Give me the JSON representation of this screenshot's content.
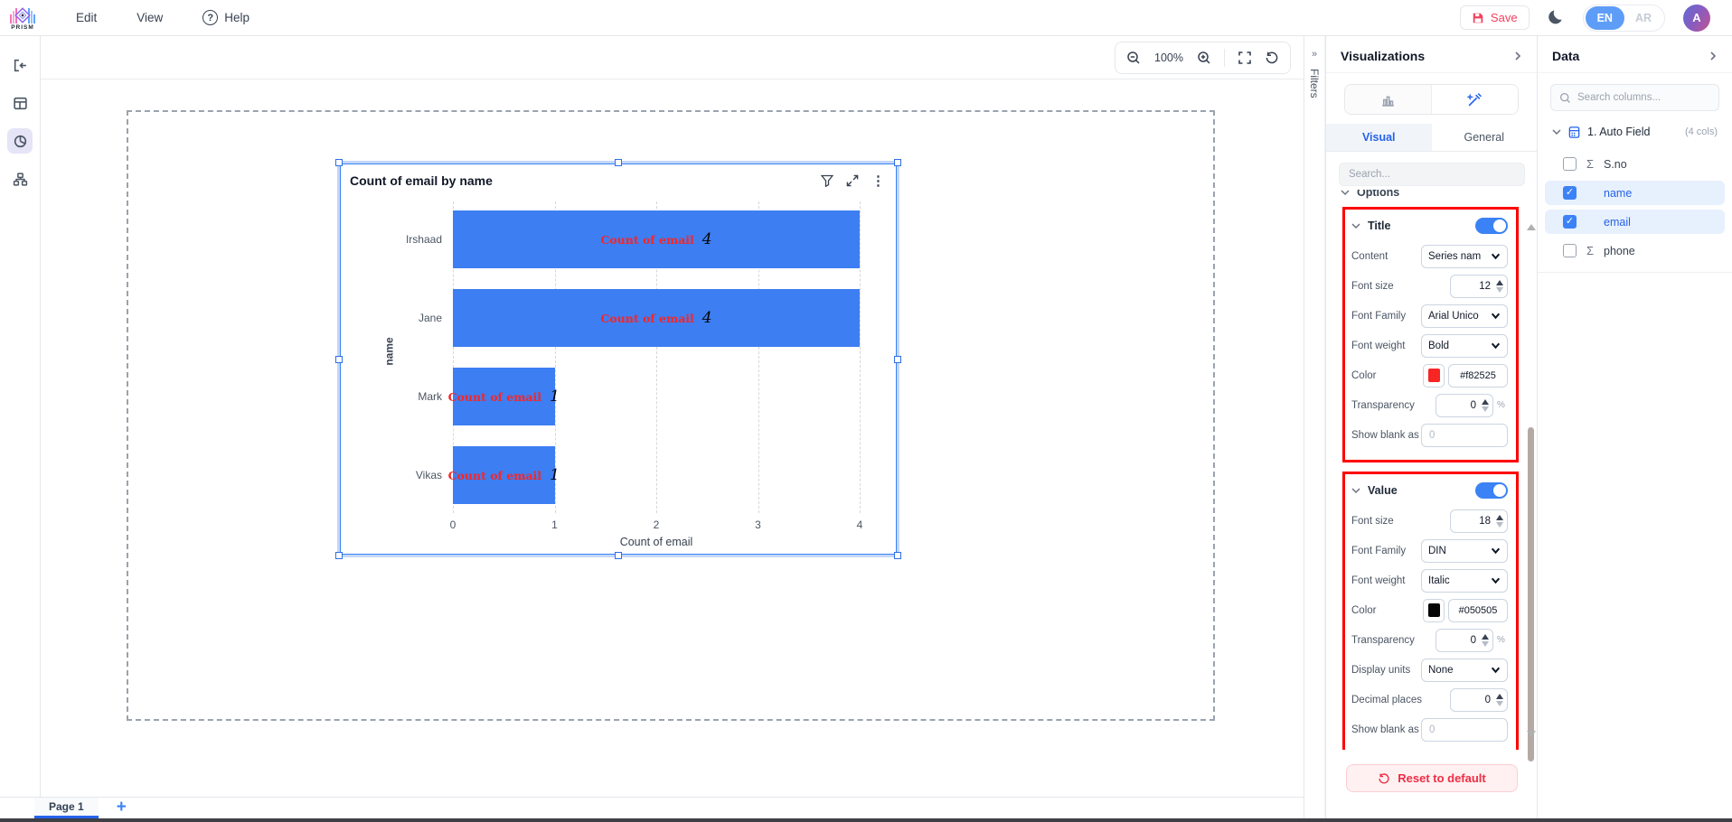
{
  "header": {
    "logo_text": "PRISM",
    "menu_edit": "Edit",
    "menu_view": "View",
    "menu_help": "Help",
    "save_label": "Save",
    "lang_en": "EN",
    "lang_ar": "AR",
    "avatar_initial": "A"
  },
  "toolbar": {
    "zoom_level": "100%"
  },
  "chart_data": {
    "type": "bar",
    "orientation": "horizontal",
    "title": "Count of email by name",
    "categories": [
      "Irshaad",
      "Jane",
      "Mark",
      "Vikas"
    ],
    "values": [
      4,
      4,
      1,
      1
    ],
    "series_label": "Count of email",
    "xlabel": "Count of email",
    "ylabel": "name",
    "xlim": [
      0,
      4
    ],
    "x_ticks": [
      "0",
      "1",
      "2",
      "3",
      "4"
    ],
    "bar_color": "#3d7ef2",
    "series_label_color": "#f82525",
    "value_color": "#050505",
    "grid": true,
    "legend": "none"
  },
  "filters_rail": {
    "label": "Filters"
  },
  "viz_panel": {
    "title": "Visualizations",
    "tab_visual": "Visual",
    "tab_general": "General",
    "search_placeholder": "Search...",
    "options_label": "Options",
    "title_section": {
      "label": "Title",
      "content_label": "Content",
      "content_value": "Series nam",
      "font_size_label": "Font size",
      "font_size_value": "12",
      "font_family_label": "Font Family",
      "font_family_value": "Arial Unico",
      "font_weight_label": "Font weight",
      "font_weight_value": "Bold",
      "color_label": "Color",
      "color_value": "#f82525",
      "color_swatch": "#f82525",
      "transparency_label": "Transparency",
      "transparency_value": "0",
      "transparency_unit": "%",
      "show_blank_label": "Show blank as",
      "show_blank_placeholder": "0"
    },
    "value_section": {
      "label": "Value",
      "font_size_label": "Font size",
      "font_size_value": "18",
      "font_family_label": "Font Family",
      "font_family_value": "DIN",
      "font_weight_label": "Font weight",
      "font_weight_value": "Italic",
      "color_label": "Color",
      "color_value": "#050505",
      "color_swatch": "#050505",
      "transparency_label": "Transparency",
      "transparency_value": "0",
      "transparency_unit": "%",
      "display_units_label": "Display units",
      "display_units_value": "None",
      "decimal_places_label": "Decimal places",
      "decimal_places_value": "0",
      "show_blank_label": "Show blank as",
      "show_blank_placeholder": "0"
    },
    "reset_label": "Reset to default"
  },
  "data_panel": {
    "title": "Data",
    "search_placeholder": "Search columns...",
    "table_name": "1. Auto Field",
    "table_cols": "(4 cols)",
    "fields": [
      {
        "label": "S.no",
        "checked": false,
        "numeric": true
      },
      {
        "label": "name",
        "checked": true,
        "numeric": false
      },
      {
        "label": "email",
        "checked": true,
        "numeric": false
      },
      {
        "label": "phone",
        "checked": false,
        "numeric": true
      }
    ]
  },
  "footer": {
    "page_label": "Page 1",
    "add_page": "+"
  }
}
